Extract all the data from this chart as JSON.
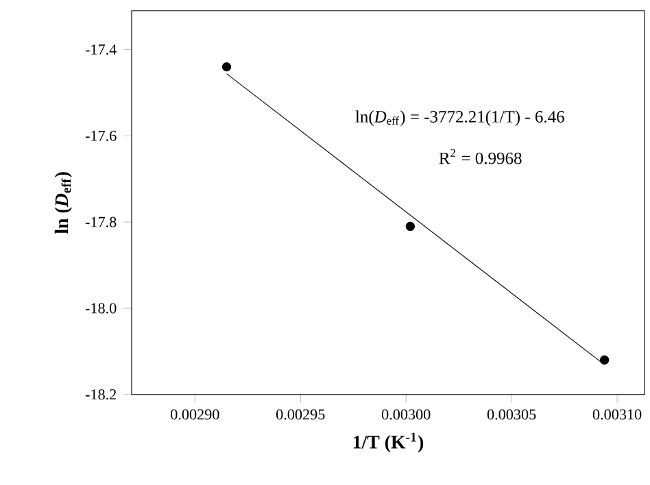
{
  "chart_data": {
    "type": "scatter",
    "xlabel": "1/T (K$^{-1}$)",
    "ylabel": "ln (*D*$_{eff}$)",
    "annotations": [
      "ln(*D*$_{eff}$) = -3772.21(1/T) - 6.46",
      "R$^{2}$ = 0.9968"
    ],
    "series": [
      {
        "color": "#000000",
        "marker": "circle",
        "x": [
          0.002915,
          0.003002,
          0.003094
        ],
        "values": [
          -17.44,
          -17.81,
          -18.12
        ]
      },
      {
        "type": "line",
        "color": "#000000",
        "marker": "none",
        "line_style": "solid",
        "x": [
          0.002915,
          0.003094
        ],
        "values": [
          -17.456,
          -18.131
        ]
      }
    ],
    "xlim": [
      0.00287,
      0.003113
    ],
    "ylim": [
      -18.2,
      -17.31
    ],
    "xticks": [
      {
        "value": 0.0029,
        "label": "0.00290"
      },
      {
        "value": 0.00295,
        "label": "0.00295"
      },
      {
        "value": 0.003,
        "label": "0.00300"
      },
      {
        "value": 0.00305,
        "label": "0.00305"
      },
      {
        "value": 0.0031,
        "label": "0.00310"
      }
    ],
    "yticks": [
      {
        "value": -18.2,
        "label": "-18.2"
      },
      {
        "value": -18.0,
        "label": "-18.0"
      },
      {
        "value": -17.8,
        "label": "-17.8"
      },
      {
        "value": -17.6,
        "label": "-17.6"
      },
      {
        "value": -17.4,
        "label": "-17.4"
      }
    ],
    "grid": false
  }
}
